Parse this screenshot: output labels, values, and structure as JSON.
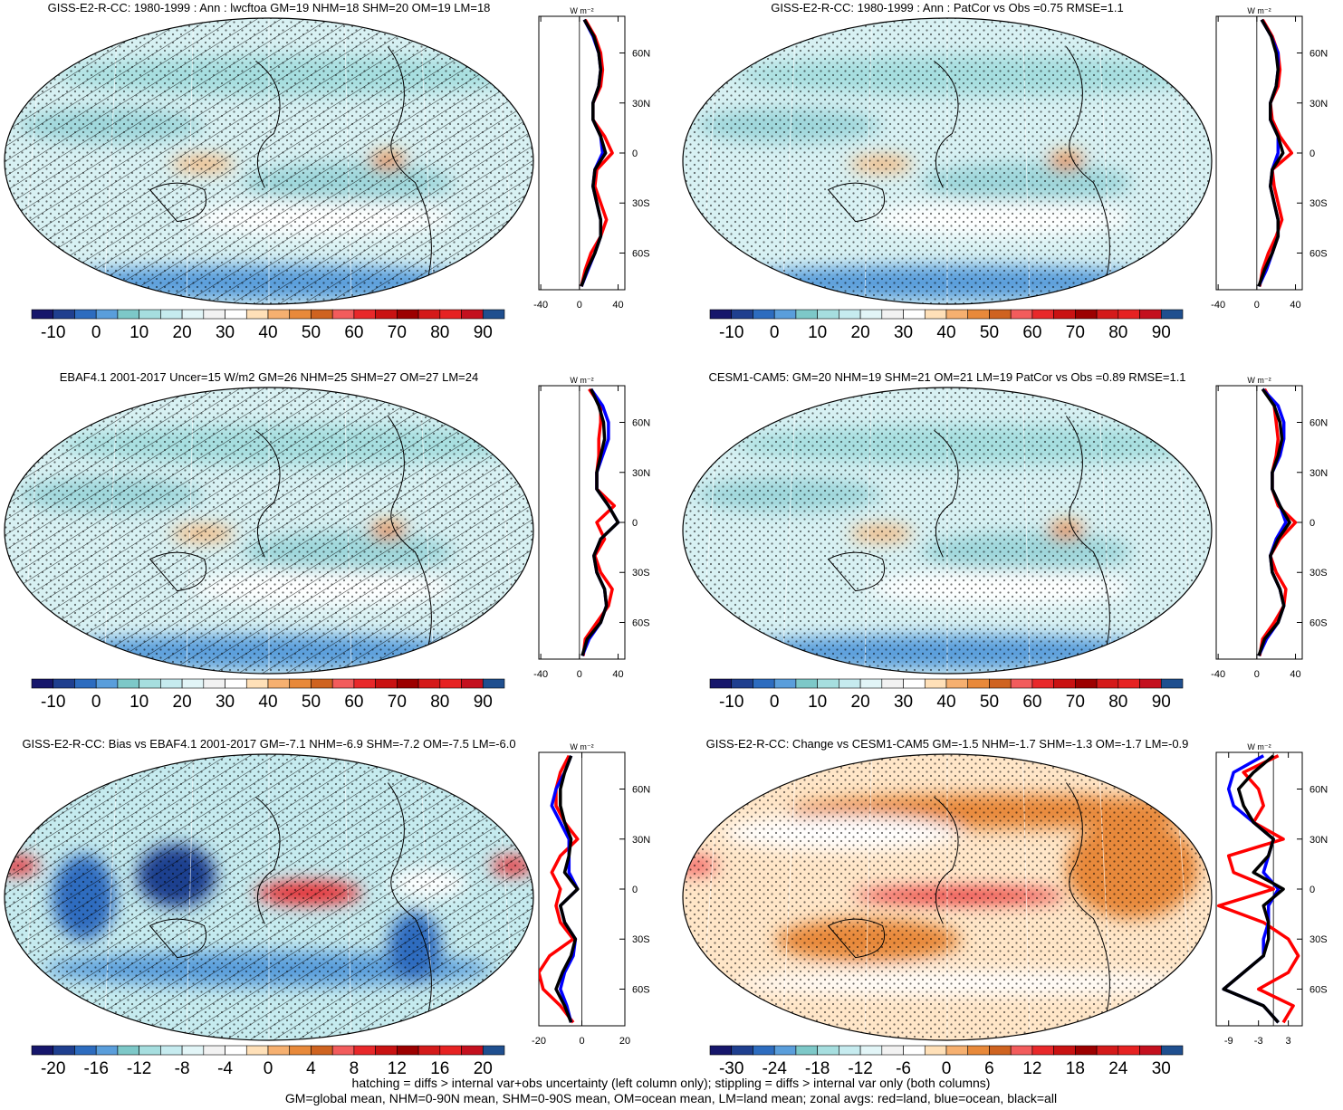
{
  "panels": [
    {
      "title": "GISS-E2-R-CC: 1980-1999 : Ann : lwcftoa GM=19 NHM=18 SHM=20 OM=19 LM=18",
      "units": "W m⁻²",
      "hatching": true,
      "map_style": "mean",
      "colorbar": {
        "colors": [
          "#16166b",
          "#1f3f8f",
          "#2d6cbf",
          "#5a9edb",
          "#7dc8c8",
          "#a6dedf",
          "#c6ebef",
          "#e2f5f7",
          "#f2f2f2",
          "#ffffff",
          "#ffe0b8",
          "#f6b070",
          "#e8893a",
          "#cf6320",
          "#f25c5c",
          "#e8282a",
          "#c91212",
          "#9c0000",
          "#d41a1a",
          "#e62222",
          "#c4101e",
          "#1f4f8f"
        ],
        "labels": [
          -10,
          0,
          10,
          20,
          30,
          40,
          50,
          60,
          70,
          80,
          90
        ]
      },
      "zonal": {
        "xlim": [
          -42,
          47
        ],
        "xticks": [
          -40,
          0,
          40
        ],
        "ylim": [
          -82,
          82
        ],
        "yticks": [
          {
            "value": 60,
            "label": "60N"
          },
          {
            "value": 30,
            "label": "30N"
          },
          {
            "value": 0,
            "label": "0"
          },
          {
            "value": -30,
            "label": "30S"
          },
          {
            "value": -60,
            "label": "60S"
          }
        ],
        "lat": [
          -80,
          -70,
          -60,
          -50,
          -40,
          -30,
          -20,
          -10,
          0,
          10,
          20,
          30,
          40,
          50,
          60,
          70,
          80
        ],
        "series": [
          {
            "color": "#ff0000",
            "values": [
              2,
              6,
              12,
              22,
              28,
              22,
              16,
              18,
              34,
              26,
              14,
              14,
              22,
              24,
              22,
              16,
              6
            ]
          },
          {
            "color": "#0000ff",
            "values": [
              2,
              9,
              16,
              22,
              22,
              18,
              14,
              16,
              24,
              22,
              14,
              14,
              20,
              22,
              20,
              14,
              5
            ]
          },
          {
            "color": "#000000",
            "values": [
              2,
              8,
              16,
              22,
              22,
              18,
              14,
              16,
              27,
              22,
              14,
              14,
              20,
              22,
              20,
              15,
              5
            ]
          }
        ]
      }
    },
    {
      "title": "GISS-E2-R-CC: 1980-1999 : Ann : PatCor vs Obs =0.75 RMSE=1.1",
      "units": "W m⁻²",
      "hatching": false,
      "map_style": "mean",
      "colorbar": {
        "colors": [
          "#16166b",
          "#1f3f8f",
          "#2d6cbf",
          "#5a9edb",
          "#7dc8c8",
          "#a6dedf",
          "#c6ebef",
          "#e2f5f7",
          "#f2f2f2",
          "#ffffff",
          "#ffe0b8",
          "#f6b070",
          "#e8893a",
          "#cf6320",
          "#f25c5c",
          "#e8282a",
          "#c91212",
          "#9c0000",
          "#d41a1a",
          "#e62222",
          "#c4101e",
          "#1f4f8f"
        ],
        "labels": [
          -10,
          0,
          10,
          20,
          30,
          40,
          50,
          60,
          70,
          80,
          90
        ]
      },
      "zonal": {
        "xlim": [
          -42,
          47
        ],
        "xticks": [
          -40,
          0,
          40
        ],
        "ylim": [
          -82,
          82
        ],
        "yticks": [
          {
            "value": 60,
            "label": "60N"
          },
          {
            "value": 30,
            "label": "30N"
          },
          {
            "value": 0,
            "label": "0"
          },
          {
            "value": -30,
            "label": "30S"
          },
          {
            "value": -60,
            "label": "60S"
          }
        ],
        "lat": [
          -80,
          -70,
          -60,
          -50,
          -40,
          -30,
          -20,
          -10,
          0,
          10,
          20,
          30,
          40,
          50,
          60,
          70,
          80
        ],
        "series": [
          {
            "color": "#ff0000",
            "values": [
              3,
              6,
              12,
              20,
              26,
              22,
              18,
              16,
              36,
              24,
              16,
              14,
              22,
              24,
              22,
              16,
              6
            ]
          },
          {
            "color": "#0000ff",
            "values": [
              2,
              10,
              16,
              22,
              22,
              18,
              14,
              16,
              22,
              22,
              14,
              14,
              20,
              22,
              22,
              15,
              5
            ]
          },
          {
            "color": "#000000",
            "values": [
              2,
              8,
              16,
              22,
              22,
              18,
              14,
              16,
              27,
              22,
              14,
              14,
              20,
              22,
              20,
              15,
              5
            ]
          }
        ]
      }
    },
    {
      "title": "EBAF4.1 2001-2017 Uncer=15 W/m2 GM=26 NHM=25 SHM=27 OM=27 LM=24",
      "units": "W m⁻²",
      "hatching": true,
      "map_style": "mean",
      "colorbar": {
        "colors": [
          "#16166b",
          "#1f3f8f",
          "#2d6cbf",
          "#5a9edb",
          "#7dc8c8",
          "#a6dedf",
          "#c6ebef",
          "#e2f5f7",
          "#f2f2f2",
          "#ffffff",
          "#ffe0b8",
          "#f6b070",
          "#e8893a",
          "#cf6320",
          "#f25c5c",
          "#e8282a",
          "#c91212",
          "#9c0000",
          "#d41a1a",
          "#e62222",
          "#c4101e",
          "#1f4f8f"
        ],
        "labels": [
          -10,
          0,
          10,
          20,
          30,
          40,
          50,
          60,
          70,
          80,
          90
        ]
      },
      "zonal": {
        "xlim": [
          -42,
          47
        ],
        "xticks": [
          -40,
          0,
          40
        ],
        "ylim": [
          -82,
          82
        ],
        "yticks": [
          {
            "value": 60,
            "label": "60N"
          },
          {
            "value": 30,
            "label": "30N"
          },
          {
            "value": 0,
            "label": "0"
          },
          {
            "value": -30,
            "label": "30S"
          },
          {
            "value": -60,
            "label": "60S"
          }
        ],
        "lat": [
          -80,
          -70,
          -60,
          -50,
          -40,
          -30,
          -20,
          -10,
          0,
          10,
          20,
          30,
          40,
          50,
          60,
          70,
          80
        ],
        "series": [
          {
            "color": "#ff0000",
            "values": [
              4,
              6,
              18,
              30,
              34,
              22,
              16,
              26,
              18,
              36,
              18,
              18,
              20,
              20,
              22,
              22,
              10
            ]
          },
          {
            "color": "#0000ff",
            "values": [
              3,
              10,
              22,
              28,
              26,
              18,
              15,
              22,
              40,
              30,
              18,
              18,
              24,
              30,
              30,
              24,
              12
            ]
          },
          {
            "color": "#000000",
            "values": [
              3,
              8,
              22,
              28,
              26,
              18,
              15,
              22,
              40,
              30,
              18,
              18,
              22,
              26,
              25,
              20,
              12
            ]
          }
        ]
      }
    },
    {
      "title": "CESM1-CAM5: GM=20 NHM=19 SHM=21 OM=21 LM=19 PatCor vs Obs =0.89 RMSE=1.1",
      "units": "W m⁻²",
      "hatching": false,
      "map_style": "mean",
      "colorbar": {
        "colors": [
          "#16166b",
          "#1f3f8f",
          "#2d6cbf",
          "#5a9edb",
          "#7dc8c8",
          "#a6dedf",
          "#c6ebef",
          "#e2f5f7",
          "#f2f2f2",
          "#ffffff",
          "#ffe0b8",
          "#f6b070",
          "#e8893a",
          "#cf6320",
          "#f25c5c",
          "#e8282a",
          "#c91212",
          "#9c0000",
          "#d41a1a",
          "#e62222",
          "#c4101e",
          "#1f4f8f"
        ],
        "labels": [
          -10,
          0,
          10,
          20,
          30,
          40,
          50,
          60,
          70,
          80,
          90
        ]
      },
      "zonal": {
        "xlim": [
          -42,
          47
        ],
        "xticks": [
          -40,
          0,
          40
        ],
        "ylim": [
          -82,
          82
        ],
        "yticks": [
          {
            "value": 60,
            "label": "60N"
          },
          {
            "value": 30,
            "label": "30N"
          },
          {
            "value": 0,
            "label": "0"
          },
          {
            "value": -30,
            "label": "30S"
          },
          {
            "value": -60,
            "label": "60S"
          }
        ],
        "lat": [
          -80,
          -70,
          -60,
          -50,
          -40,
          -30,
          -20,
          -10,
          0,
          10,
          20,
          30,
          40,
          50,
          60,
          70,
          80
        ],
        "series": [
          {
            "color": "#ff0000",
            "values": [
              3,
              6,
              18,
              28,
              30,
              20,
              14,
              24,
              40,
              22,
              16,
              16,
              20,
              22,
              20,
              18,
              8
            ]
          },
          {
            "color": "#0000ff",
            "values": [
              2,
              10,
              22,
              28,
              24,
              16,
              14,
              20,
              30,
              24,
              16,
              16,
              24,
              28,
              28,
              22,
              6
            ]
          },
          {
            "color": "#000000",
            "values": [
              2,
              8,
              22,
              28,
              24,
              16,
              14,
              22,
              34,
              24,
              16,
              16,
              22,
              26,
              24,
              18,
              6
            ]
          }
        ]
      }
    },
    {
      "title": "GISS-E2-R-CC: Bias vs EBAF4.1 2001-2017 GM=-7.1 NHM=-6.9 SHM=-7.2 OM=-7.5 LM=-6.0",
      "units": "W m⁻²",
      "hatching": true,
      "map_style": "bias",
      "colorbar": {
        "colors": [
          "#16166b",
          "#1f3f8f",
          "#2d6cbf",
          "#5a9edb",
          "#7dc8c8",
          "#a6dedf",
          "#c6ebef",
          "#e2f5f7",
          "#f2f2f2",
          "#ffffff",
          "#ffe0b8",
          "#f6b070",
          "#e8893a",
          "#cf6320",
          "#f25c5c",
          "#e8282a",
          "#c91212",
          "#9c0000",
          "#d41a1a",
          "#e62222",
          "#c4101e",
          "#1f4f8f"
        ],
        "labels": [
          -20,
          -16,
          -12,
          -8,
          -4,
          0,
          4,
          8,
          12,
          16,
          20
        ]
      },
      "zonal": {
        "xlim": [
          -20,
          20
        ],
        "xticks": [
          -20,
          0,
          20
        ],
        "ylim": [
          -82,
          82
        ],
        "yticks": [
          {
            "value": 60,
            "label": "60N"
          },
          {
            "value": 30,
            "label": "30N"
          },
          {
            "value": 0,
            "label": "0"
          },
          {
            "value": -30,
            "label": "30S"
          },
          {
            "value": -60,
            "label": "60S"
          }
        ],
        "lat": [
          -80,
          -70,
          -60,
          -50,
          -40,
          -30,
          -20,
          -10,
          0,
          10,
          20,
          30,
          40,
          50,
          60,
          70,
          80
        ],
        "series": [
          {
            "color": "#ff0000",
            "values": [
              -4,
              -10,
              -18,
              -20,
              -15,
              -4,
              -10,
              -12,
              -10,
              -14,
              -10,
              -2,
              -8,
              -12,
              -12,
              -10,
              -6
            ]
          },
          {
            "color": "#0000ff",
            "values": [
              -5,
              -7,
              -10,
              -8,
              -4,
              -3,
              -8,
              -10,
              -2,
              -6,
              -6,
              -6,
              -10,
              -14,
              -12,
              -8,
              -5
            ]
          },
          {
            "color": "#000000",
            "values": [
              -5,
              -8,
              -12,
              -9,
              -5,
              -3,
              -8,
              -10,
              -2,
              -8,
              -6,
              -5,
              -8,
              -10,
              -10,
              -8,
              -5
            ]
          }
        ]
      }
    },
    {
      "title": "GISS-E2-R-CC: Change vs CESM1-CAM5 GM=-1.5 NHM=-1.7 SHM=-1.3 OM=-1.7 LM=-0.9",
      "units": "W m⁻²",
      "hatching": false,
      "map_style": "change",
      "colorbar": {
        "colors": [
          "#16166b",
          "#1f3f8f",
          "#2d6cbf",
          "#5a9edb",
          "#7dc8c8",
          "#a6dedf",
          "#c6ebef",
          "#e2f5f7",
          "#f2f2f2",
          "#ffffff",
          "#ffe0b8",
          "#f6b070",
          "#e8893a",
          "#cf6320",
          "#f25c5c",
          "#e8282a",
          "#c91212",
          "#9c0000",
          "#d41a1a",
          "#e62222",
          "#c4101e",
          "#1f4f8f"
        ],
        "labels": [
          -30,
          -24,
          -18,
          -12,
          -6,
          0,
          6,
          12,
          18,
          24,
          30
        ]
      },
      "zonal": {
        "xlim": [
          -11.5,
          5.8
        ],
        "xticks": [
          -9,
          -3,
          3
        ],
        "ylim": [
          -82,
          82
        ],
        "yticks": [
          {
            "value": 60,
            "label": "60N"
          },
          {
            "value": 30,
            "label": "30N"
          },
          {
            "value": 0,
            "label": "0"
          },
          {
            "value": -30,
            "label": "30S"
          },
          {
            "value": -60,
            "label": "60S"
          }
        ],
        "lat": [
          -80,
          -70,
          -60,
          -50,
          -40,
          -30,
          -20,
          -10,
          0,
          10,
          20,
          30,
          40,
          50,
          60,
          70,
          80
        ],
        "series": [
          {
            "color": "#ff0000",
            "values": [
              2,
              4,
              -3,
              3,
              5,
              3,
              -2,
              -11,
              0,
              -8,
              -9,
              2,
              -4,
              -2,
              -3,
              -6,
              1
            ]
          },
          {
            "color": "#0000ff",
            "values": [
              1,
              -2,
              -10,
              -6,
              -2,
              -2,
              -1,
              -1,
              1,
              -2,
              -1,
              0,
              -4,
              -8,
              -9,
              -8,
              -2
            ]
          },
          {
            "color": "#000000",
            "values": [
              1,
              -2,
              -10,
              -6,
              -2,
              -1,
              -1,
              -2,
              2,
              -4,
              -1,
              0,
              -4,
              -6,
              -7,
              -4,
              0
            ]
          }
        ]
      }
    }
  ],
  "footer": [
    "hatching = diffs > internal var+obs uncertainty (left column only); stippling = diffs > internal var only (both columns)",
    "GM=global mean, NHM=0-90N mean, SHM=0-90S mean, OM=ocean mean, LM=land mean; zonal avgs: red=land, blue=ocean, black=all"
  ]
}
